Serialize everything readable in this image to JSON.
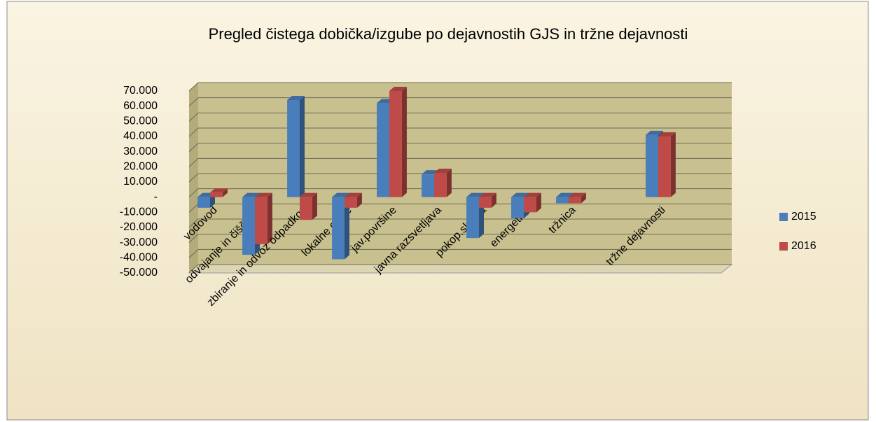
{
  "chart_data": {
    "type": "bar3d",
    "title": "Pregled čistega dobička/izgube po dejavnostih GJS in tržne dejavnosti",
    "categories": [
      "vodovod",
      "odvajanje in čiščenje",
      "zbiranje in odvoz odpadkov",
      "lokalne ceste",
      "jav.površine",
      "javna razsvetljava",
      "pokop.služba",
      "energetika",
      "tržnica",
      null,
      "tržne dejavnosti"
    ],
    "series": [
      {
        "name": "2015",
        "color": "#4a7ebb",
        "values": [
          -7000,
          -38000,
          64000,
          -41000,
          62000,
          15000,
          -27000,
          -14000,
          -4000,
          null,
          41000
        ]
      },
      {
        "name": "2016",
        "color": "#be4b48",
        "values": [
          3000,
          -31000,
          -15000,
          -7000,
          70000,
          16000,
          -7000,
          -10000,
          -4000,
          null,
          40000
        ]
      }
    ],
    "ylim": [
      -50000,
      70000
    ],
    "yticks": [
      {
        "value": -50000,
        "label": "-50.000"
      },
      {
        "value": -40000,
        "label": "-40.000"
      },
      {
        "value": -30000,
        "label": "-30.000"
      },
      {
        "value": -20000,
        "label": "-20.000"
      },
      {
        "value": -10000,
        "label": "-10.000"
      },
      {
        "value": 0,
        "label": "-"
      },
      {
        "value": 10000,
        "label": "10.000"
      },
      {
        "value": 20000,
        "label": "20.000"
      },
      {
        "value": 30000,
        "label": "30.000"
      },
      {
        "value": 40000,
        "label": "40.000"
      },
      {
        "value": 50000,
        "label": "50.000"
      },
      {
        "value": 60000,
        "label": "60.000"
      },
      {
        "value": 70000,
        "label": "70.000"
      }
    ],
    "grid": true,
    "legend": "right"
  }
}
